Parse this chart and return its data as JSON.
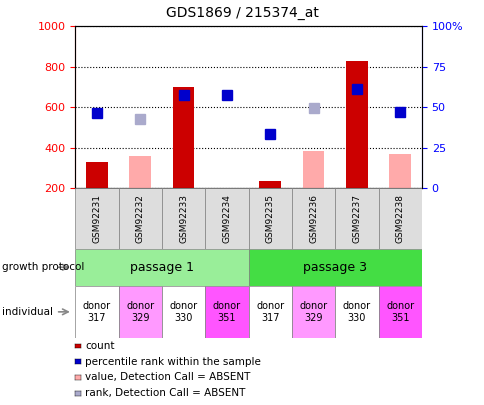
{
  "title": "GDS1869 / 215374_at",
  "samples": [
    "GSM92231",
    "GSM92232",
    "GSM92233",
    "GSM92234",
    "GSM92235",
    "GSM92236",
    "GSM92237",
    "GSM92238"
  ],
  "count_values": [
    330,
    0,
    700,
    0,
    235,
    0,
    830,
    0
  ],
  "count_absent_values": [
    0,
    360,
    0,
    0,
    0,
    385,
    0,
    370
  ],
  "percentile_values": [
    570,
    0,
    660,
    660,
    470,
    0,
    690,
    575
  ],
  "percentile_absent_values": [
    0,
    540,
    0,
    0,
    0,
    595,
    0,
    0
  ],
  "count_color": "#cc0000",
  "count_absent_color": "#ffaaaa",
  "percentile_color": "#0000cc",
  "percentile_absent_color": "#aaaacc",
  "ylim_left": [
    200,
    1000
  ],
  "ylim_right": [
    0,
    100
  ],
  "yticks_left": [
    200,
    400,
    600,
    800,
    1000
  ],
  "yticks_right": [
    0,
    25,
    50,
    75,
    100
  ],
  "passage1_color": "#99ee99",
  "passage3_color": "#44dd44",
  "donor_colors": [
    "#ffffff",
    "#ff99ff",
    "#ffffff",
    "#ff55ff",
    "#ffffff",
    "#ff99ff",
    "#ffffff",
    "#ff55ff"
  ],
  "donor_labels": [
    "donor\n317",
    "donor\n329",
    "donor\n330",
    "donor\n351",
    "donor\n317",
    "donor\n329",
    "donor\n330",
    "donor\n351"
  ],
  "growth_protocol_label": "growth protocol",
  "individual_label": "individual",
  "legend_items": [
    {
      "label": "count",
      "color": "#cc0000"
    },
    {
      "label": "percentile rank within the sample",
      "color": "#0000cc"
    },
    {
      "label": "value, Detection Call = ABSENT",
      "color": "#ffaaaa"
    },
    {
      "label": "rank, Detection Call = ABSENT",
      "color": "#aaaacc"
    }
  ],
  "bar_width": 0.5,
  "marker_size": 7
}
